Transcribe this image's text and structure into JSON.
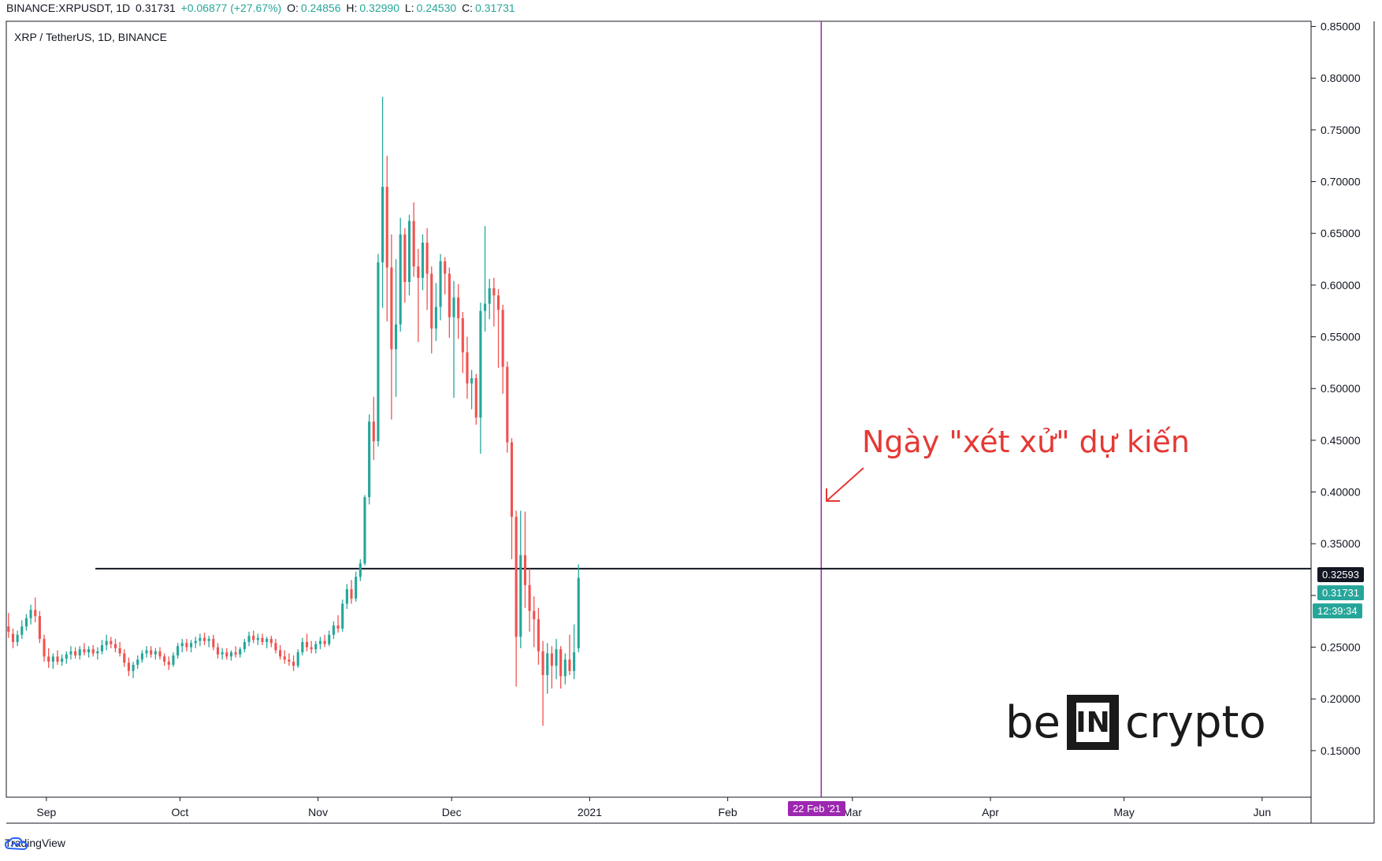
{
  "header": {
    "symbol": "BINANCE:XRPUSDT, 1D",
    "last": "0.31731",
    "change": "+0.06877 (+27.67%)",
    "open_label": "O:",
    "open": "0.24856",
    "high_label": "H:",
    "high": "0.32990",
    "low_label": "L:",
    "low": "0.24530",
    "close_label": "C:",
    "close": "0.31731"
  },
  "chart_title": "XRP / TetherUS, 1D, BINANCE",
  "branding": {
    "platform": "TradingView",
    "watermark_left": "be",
    "watermark_box": "IN",
    "watermark_right": "crypto"
  },
  "annotation": {
    "text": "Ngày \"xét xử\" dự kiến",
    "color": "#e53935"
  },
  "badges": {
    "horizontal_level": "0.32593",
    "current_price": "0.31731",
    "countdown": "12:39:34",
    "vertical_date": "22 Feb '21"
  },
  "colors": {
    "up": "#26a69a",
    "down": "#ef5350",
    "vline": "#9c27b0",
    "hline": "#131722"
  },
  "chart_data": {
    "type": "candlestick",
    "title": "XRP / TetherUS, 1D, BINANCE",
    "ylim": [
      0.105,
      0.855
    ],
    "y_ticks": [
      "0.15000",
      "0.20000",
      "0.25000",
      "0.30000",
      "0.35000",
      "0.40000",
      "0.45000",
      "0.50000",
      "0.55000",
      "0.60000",
      "0.65000",
      "0.70000",
      "0.75000",
      "0.80000",
      "0.85000"
    ],
    "x_ticks": [
      {
        "label": "Sep",
        "day": 9
      },
      {
        "label": "Oct",
        "day": 39
      },
      {
        "label": "Nov",
        "day": 70
      },
      {
        "label": "Dec",
        "day": 100
      },
      {
        "label": "2021",
        "day": 131
      },
      {
        "label": "Feb",
        "day": 162
      },
      {
        "label": "Mar",
        "day": 190
      },
      {
        "label": "Apr",
        "day": 221
      },
      {
        "label": "May",
        "day": 251
      },
      {
        "label": "Jun",
        "day": 282
      }
    ],
    "x_range": [
      0,
      293
    ],
    "horizontal_line": {
      "y": 0.32593,
      "from_day": 20
    },
    "vertical_line": {
      "day": 183,
      "label": "22 Feb '21"
    },
    "candles": [
      [
        0.27,
        0.283,
        0.259,
        0.265
      ],
      [
        0.263,
        0.268,
        0.249,
        0.255
      ],
      [
        0.255,
        0.266,
        0.251,
        0.262
      ],
      [
        0.262,
        0.276,
        0.258,
        0.27
      ],
      [
        0.27,
        0.282,
        0.266,
        0.278
      ],
      [
        0.278,
        0.291,
        0.272,
        0.286
      ],
      [
        0.286,
        0.298,
        0.274,
        0.28
      ],
      [
        0.28,
        0.285,
        0.254,
        0.258
      ],
      [
        0.258,
        0.262,
        0.236,
        0.241
      ],
      [
        0.241,
        0.249,
        0.23,
        0.236
      ],
      [
        0.236,
        0.244,
        0.229,
        0.241
      ],
      [
        0.241,
        0.247,
        0.233,
        0.236
      ],
      [
        0.236,
        0.243,
        0.232,
        0.239
      ],
      [
        0.239,
        0.246,
        0.234,
        0.243
      ],
      [
        0.243,
        0.251,
        0.238,
        0.246
      ],
      [
        0.246,
        0.25,
        0.239,
        0.242
      ],
      [
        0.242,
        0.251,
        0.238,
        0.248
      ],
      [
        0.248,
        0.254,
        0.242,
        0.245
      ],
      [
        0.245,
        0.251,
        0.24,
        0.248
      ],
      [
        0.248,
        0.252,
        0.241,
        0.244
      ],
      [
        0.244,
        0.25,
        0.238,
        0.246
      ],
      [
        0.246,
        0.257,
        0.243,
        0.252
      ],
      [
        0.252,
        0.262,
        0.247,
        0.256
      ],
      [
        0.256,
        0.26,
        0.249,
        0.253
      ],
      [
        0.253,
        0.258,
        0.245,
        0.249
      ],
      [
        0.249,
        0.255,
        0.241,
        0.244
      ],
      [
        0.244,
        0.248,
        0.231,
        0.235
      ],
      [
        0.235,
        0.24,
        0.222,
        0.227
      ],
      [
        0.227,
        0.236,
        0.22,
        0.233
      ],
      [
        0.233,
        0.242,
        0.229,
        0.238
      ],
      [
        0.238,
        0.247,
        0.235,
        0.244
      ],
      [
        0.244,
        0.251,
        0.24,
        0.247
      ],
      [
        0.247,
        0.251,
        0.24,
        0.243
      ],
      [
        0.243,
        0.249,
        0.238,
        0.246
      ],
      [
        0.246,
        0.25,
        0.238,
        0.241
      ],
      [
        0.241,
        0.244,
        0.232,
        0.236
      ],
      [
        0.236,
        0.241,
        0.228,
        0.233
      ],
      [
        0.233,
        0.245,
        0.231,
        0.242
      ],
      [
        0.242,
        0.254,
        0.239,
        0.251
      ],
      [
        0.251,
        0.258,
        0.245,
        0.254
      ],
      [
        0.254,
        0.258,
        0.246,
        0.25
      ],
      [
        0.25,
        0.257,
        0.245,
        0.254
      ],
      [
        0.254,
        0.26,
        0.249,
        0.256
      ],
      [
        0.256,
        0.263,
        0.251,
        0.259
      ],
      [
        0.259,
        0.264,
        0.252,
        0.256
      ],
      [
        0.256,
        0.261,
        0.25,
        0.258
      ],
      [
        0.258,
        0.262,
        0.247,
        0.25
      ],
      [
        0.25,
        0.254,
        0.239,
        0.243
      ],
      [
        0.243,
        0.249,
        0.238,
        0.245
      ],
      [
        0.245,
        0.249,
        0.238,
        0.241
      ],
      [
        0.241,
        0.247,
        0.237,
        0.245
      ],
      [
        0.245,
        0.251,
        0.24,
        0.243
      ],
      [
        0.243,
        0.25,
        0.24,
        0.248
      ],
      [
        0.248,
        0.258,
        0.245,
        0.255
      ],
      [
        0.255,
        0.265,
        0.251,
        0.261
      ],
      [
        0.261,
        0.266,
        0.254,
        0.257
      ],
      [
        0.257,
        0.263,
        0.252,
        0.259
      ],
      [
        0.259,
        0.263,
        0.252,
        0.255
      ],
      [
        0.255,
        0.26,
        0.249,
        0.258
      ],
      [
        0.258,
        0.261,
        0.25,
        0.254
      ],
      [
        0.254,
        0.258,
        0.244,
        0.247
      ],
      [
        0.247,
        0.252,
        0.238,
        0.241
      ],
      [
        0.241,
        0.247,
        0.234,
        0.238
      ],
      [
        0.238,
        0.244,
        0.232,
        0.236
      ],
      [
        0.236,
        0.242,
        0.227,
        0.232
      ],
      [
        0.232,
        0.248,
        0.23,
        0.245
      ],
      [
        0.245,
        0.259,
        0.242,
        0.255
      ],
      [
        0.255,
        0.263,
        0.246,
        0.25
      ],
      [
        0.25,
        0.256,
        0.244,
        0.248
      ],
      [
        0.248,
        0.256,
        0.244,
        0.253
      ],
      [
        0.253,
        0.26,
        0.248,
        0.256
      ],
      [
        0.256,
        0.262,
        0.25,
        0.253
      ],
      [
        0.253,
        0.266,
        0.251,
        0.262
      ],
      [
        0.262,
        0.275,
        0.258,
        0.271
      ],
      [
        0.271,
        0.281,
        0.264,
        0.268
      ],
      [
        0.268,
        0.296,
        0.265,
        0.292
      ],
      [
        0.292,
        0.311,
        0.287,
        0.306
      ],
      [
        0.306,
        0.315,
        0.292,
        0.297
      ],
      [
        0.297,
        0.323,
        0.294,
        0.318
      ],
      [
        0.318,
        0.335,
        0.314,
        0.331
      ],
      [
        0.331,
        0.397,
        0.329,
        0.395
      ],
      [
        0.395,
        0.475,
        0.388,
        0.468
      ],
      [
        0.468,
        0.492,
        0.431,
        0.449
      ],
      [
        0.449,
        0.63,
        0.444,
        0.622
      ],
      [
        0.622,
        0.782,
        0.578,
        0.695
      ],
      [
        0.695,
        0.725,
        0.565,
        0.617
      ],
      [
        0.617,
        0.649,
        0.47,
        0.538
      ],
      [
        0.538,
        0.625,
        0.492,
        0.562
      ],
      [
        0.562,
        0.665,
        0.555,
        0.649
      ],
      [
        0.649,
        0.655,
        0.583,
        0.603
      ],
      [
        0.603,
        0.668,
        0.59,
        0.662
      ],
      [
        0.662,
        0.68,
        0.608,
        0.618
      ],
      [
        0.618,
        0.635,
        0.545,
        0.607
      ],
      [
        0.607,
        0.649,
        0.595,
        0.641
      ],
      [
        0.641,
        0.655,
        0.576,
        0.611
      ],
      [
        0.611,
        0.618,
        0.534,
        0.558
      ],
      [
        0.558,
        0.602,
        0.546,
        0.579
      ],
      [
        0.579,
        0.63,
        0.566,
        0.623
      ],
      [
        0.623,
        0.627,
        0.591,
        0.611
      ],
      [
        0.611,
        0.617,
        0.549,
        0.569
      ],
      [
        0.569,
        0.604,
        0.491,
        0.588
      ],
      [
        0.588,
        0.601,
        0.548,
        0.568
      ],
      [
        0.568,
        0.574,
        0.515,
        0.535
      ],
      [
        0.535,
        0.55,
        0.49,
        0.505
      ],
      [
        0.505,
        0.518,
        0.48,
        0.51
      ],
      [
        0.51,
        0.514,
        0.465,
        0.472
      ],
      [
        0.472,
        0.583,
        0.437,
        0.575
      ],
      [
        0.575,
        0.657,
        0.555,
        0.582
      ],
      [
        0.582,
        0.606,
        0.567,
        0.597
      ],
      [
        0.597,
        0.607,
        0.56,
        0.59
      ],
      [
        0.59,
        0.596,
        0.52,
        0.576
      ],
      [
        0.576,
        0.581,
        0.495,
        0.521
      ],
      [
        0.521,
        0.526,
        0.438,
        0.448
      ],
      [
        0.448,
        0.452,
        0.335,
        0.376
      ],
      [
        0.376,
        0.382,
        0.212,
        0.26
      ],
      [
        0.26,
        0.382,
        0.249,
        0.339
      ],
      [
        0.339,
        0.381,
        0.288,
        0.31
      ],
      [
        0.31,
        0.326,
        0.265,
        0.285
      ],
      [
        0.285,
        0.299,
        0.25,
        0.277
      ],
      [
        0.277,
        0.288,
        0.233,
        0.246
      ],
      [
        0.246,
        0.256,
        0.174,
        0.223
      ],
      [
        0.223,
        0.254,
        0.205,
        0.244
      ],
      [
        0.244,
        0.251,
        0.21,
        0.232
      ],
      [
        0.232,
        0.258,
        0.219,
        0.248
      ],
      [
        0.248,
        0.251,
        0.21,
        0.222
      ],
      [
        0.222,
        0.244,
        0.214,
        0.238
      ],
      [
        0.238,
        0.262,
        0.223,
        0.227
      ],
      [
        0.227,
        0.272,
        0.219,
        0.245
      ],
      [
        0.249,
        0.33,
        0.245,
        0.317
      ]
    ]
  }
}
